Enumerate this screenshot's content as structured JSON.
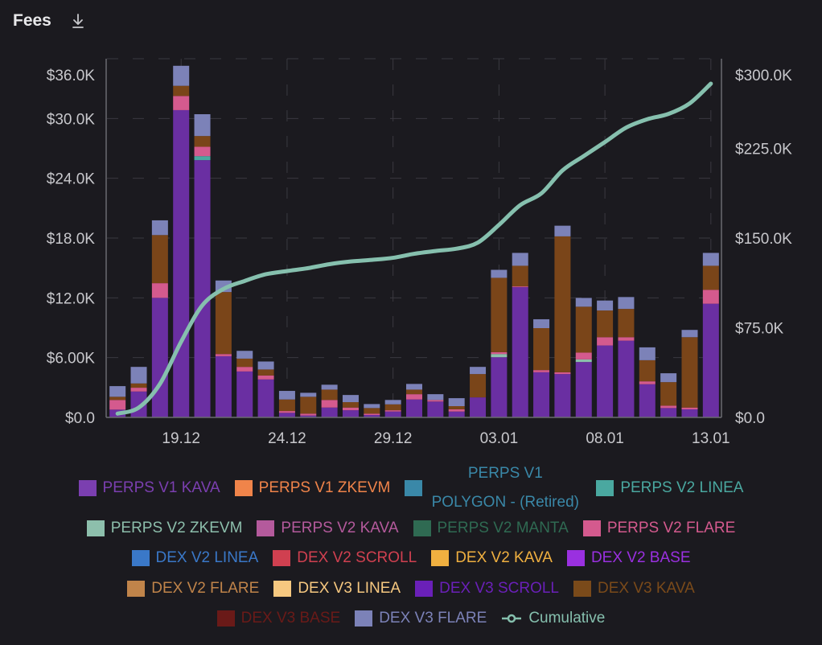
{
  "header": {
    "title": "Fees",
    "download_icon": "download-icon"
  },
  "colors": {
    "background": "#1b1a1f",
    "axis_text": "#c8c8cc",
    "cumulative_line": "#86c0ae"
  },
  "chart_data": {
    "type": "bar",
    "stacked": true,
    "title": "Fees",
    "categories": [
      "16.12",
      "17.12",
      "18.12",
      "19.12",
      "20.12",
      "21.12",
      "22.12",
      "23.12",
      "24.12",
      "25.12",
      "26.12",
      "27.12",
      "28.12",
      "29.12",
      "30.12",
      "31.12",
      "01.01",
      "02.01",
      "03.01",
      "04.01",
      "05.01",
      "06.01",
      "07.01",
      "08.01",
      "09.01",
      "10.01",
      "11.01",
      "12.01",
      "13.01"
    ],
    "x_tick_labels": [
      "19.12",
      "24.12",
      "29.12",
      "03.01",
      "08.01",
      "13.01"
    ],
    "y_left": {
      "ylim": [
        0,
        36000
      ],
      "tick_labels": [
        "$0.0",
        "$6.00K",
        "$12.0K",
        "$18.0K",
        "$24.0K",
        "$30.0K",
        "$36.0K"
      ]
    },
    "y_right": {
      "ylim": [
        0,
        300000
      ],
      "tick_labels": [
        "$0.0",
        "$75.0K",
        "$150.0K",
        "$225.0K",
        "$300.0K"
      ]
    },
    "grid": true,
    "legend_position": "bottom",
    "series": [
      {
        "name": "PERPS V1 KAVA",
        "color": "#6a2fa2",
        "values": [
          780,
          2600,
          12000,
          30840,
          25820,
          6140,
          4610,
          3810,
          460,
          190,
          990,
          720,
          240,
          590,
          1800,
          1590,
          590,
          2010,
          6040,
          13070,
          4530,
          4350,
          5560,
          7220,
          7700,
          3330,
          940,
          810,
          11410
        ]
      },
      {
        "name": "PERPS V2 LINEA",
        "color": "#4aa8a0",
        "values": [
          0,
          0,
          0,
          0,
          400,
          0,
          0,
          0,
          0,
          0,
          0,
          0,
          0,
          0,
          0,
          0,
          0,
          0,
          0,
          0,
          0,
          0,
          0,
          0,
          0,
          0,
          0,
          0,
          0
        ]
      },
      {
        "name": "PERPS V2 ZKEVM",
        "color": "#8dbfac",
        "values": [
          0,
          0,
          0,
          0,
          0,
          0,
          0,
          0,
          0,
          0,
          0,
          0,
          0,
          0,
          0,
          0,
          0,
          0,
          320,
          0,
          0,
          0,
          260,
          0,
          0,
          0,
          0,
          0,
          0
        ]
      },
      {
        "name": "PERPS V2 FLARE",
        "color": "#d45a8e",
        "values": [
          970,
          380,
          1470,
          1420,
          940,
          220,
          460,
          400,
          180,
          190,
          760,
          270,
          140,
          130,
          530,
          160,
          220,
          0,
          190,
          80,
          220,
          180,
          680,
          830,
          350,
          290,
          240,
          180,
          1390
        ]
      },
      {
        "name": "DEX V3 KAVA",
        "color": "#7a4519",
        "values": [
          320,
          430,
          4830,
          1020,
          1080,
          6220,
          830,
          600,
          1160,
          1690,
          1040,
          540,
          560,
          590,
          460,
          0,
          320,
          2340,
          7460,
          2070,
          4210,
          13640,
          4610,
          2680,
          2840,
          2120,
          2360,
          7060,
          2420
        ]
      },
      {
        "name": "DEX V3 FLARE",
        "color": "#7c82b8",
        "values": [
          1070,
          1660,
          1480,
          2010,
          2190,
          1160,
          780,
          800,
          860,
          400,
          490,
          720,
          400,
          440,
          570,
          580,
          800,
          720,
          800,
          1290,
          890,
          1070,
          880,
          1000,
          1190,
          1290,
          890,
          730,
          1290
        ]
      }
    ],
    "line_series": {
      "name": "Cumulative",
      "axis": "right",
      "values": [
        3140,
        8210,
        27990,
        63280,
        93710,
        107450,
        114130,
        119740,
        122400,
        124870,
        128150,
        130400,
        131740,
        133490,
        136850,
        139180,
        141110,
        146180,
        160990,
        177500,
        187350,
        206590,
        218580,
        230310,
        242390,
        249420,
        253850,
        262630,
        279140
      ]
    }
  },
  "legend": [
    {
      "label": "PERPS V1 KAVA",
      "color": "#7b3fb0"
    },
    {
      "label": "PERPS V1 ZKEVM",
      "color": "#f0844a"
    },
    {
      "label": "PERPS V1 POLYGON - (Retired)",
      "color": "#3a88a8"
    },
    {
      "label": "PERPS V2 LINEA",
      "color": "#4aa8a0"
    },
    {
      "label": "PERPS V2 ZKEVM",
      "color": "#8dbfac"
    },
    {
      "label": "PERPS V2 KAVA",
      "color": "#b45a9c"
    },
    {
      "label": "PERPS V2 MANTA",
      "color": "#2f6a52"
    },
    {
      "label": "PERPS V2 FLARE",
      "color": "#d45a8e"
    },
    {
      "label": "DEX V2 LINEA",
      "color": "#3a78c8"
    },
    {
      "label": "DEX V2 SCROLL",
      "color": "#d04050"
    },
    {
      "label": "DEX V2 KAVA",
      "color": "#f0b040"
    },
    {
      "label": "DEX V2 BASE",
      "color": "#9a30e0"
    },
    {
      "label": "DEX V2 FLARE",
      "color": "#c0844a"
    },
    {
      "label": "DEX V3 LINEA",
      "color": "#f6c880"
    },
    {
      "label": "DEX V3 SCROLL",
      "color": "#6a20b8"
    },
    {
      "label": "DEX V3 KAVA",
      "color": "#7a4a1a"
    },
    {
      "label": "DEX V3 BASE",
      "color": "#6a1a18"
    },
    {
      "label": "DEX V3 FLARE",
      "color": "#7c82b8"
    },
    {
      "label": "Cumulative",
      "color": "#86c0ae",
      "marker": "line-circle"
    }
  ]
}
